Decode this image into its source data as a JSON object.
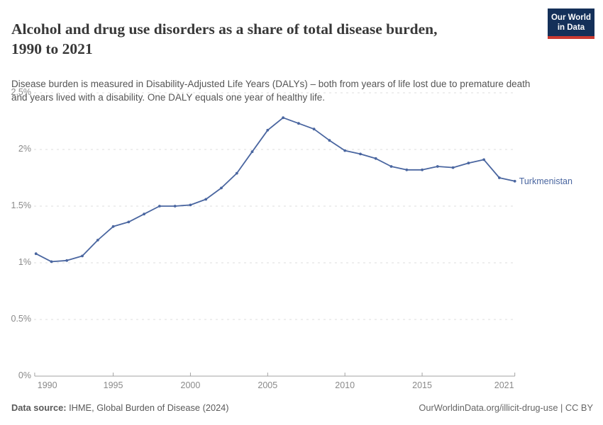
{
  "header": {
    "title_lines": [
      "Alcohol and drug use disorders as a share of total disease burden,",
      "1990 to 2021"
    ],
    "logo": {
      "line1": "Our World",
      "line2": "in Data",
      "bg_color": "#143059",
      "accent_color": "#cb3a31"
    }
  },
  "subtitle_lines": [
    "Disease burden is measured in Disability-Adjusted Life Years (DALYs) – both from years of life lost due to premature death",
    "and years lived with a disability. One DALY equals one year of healthy life."
  ],
  "chart_data": {
    "type": "line",
    "title": "Alcohol and drug use disorders as a share of total disease burden, 1990 to 2021",
    "unit": "%",
    "xlabel": "",
    "ylabel": "",
    "xlim": [
      1990,
      2021
    ],
    "ylim": [
      0,
      2.5
    ],
    "grid": "horizontal-dashed",
    "legend_position": "end-of-line-label",
    "x": [
      1990,
      1991,
      1992,
      1993,
      1994,
      1995,
      1996,
      1997,
      1998,
      1999,
      2000,
      2001,
      2002,
      2003,
      2004,
      2005,
      2006,
      2007,
      2008,
      2009,
      2010,
      2011,
      2012,
      2013,
      2014,
      2015,
      2016,
      2017,
      2018,
      2019,
      2020,
      2021
    ],
    "series": [
      {
        "name": "Turkmenistan",
        "color": "#4a66a0",
        "values": [
          1.08,
          1.01,
          1.02,
          1.06,
          1.2,
          1.32,
          1.36,
          1.43,
          1.5,
          1.5,
          1.51,
          1.56,
          1.66,
          1.79,
          1.98,
          2.17,
          2.28,
          2.23,
          2.18,
          2.08,
          1.99,
          1.96,
          1.92,
          1.85,
          1.82,
          1.82,
          1.85,
          1.84,
          1.88,
          1.91,
          1.75,
          1.72
        ]
      }
    ],
    "yticks": [
      {
        "value": 2.5,
        "label": "2.5%"
      },
      {
        "value": 2.0,
        "label": "2%"
      },
      {
        "value": 1.5,
        "label": "1.5%"
      },
      {
        "value": 1.0,
        "label": "1%"
      },
      {
        "value": 0.5,
        "label": "0.5%"
      },
      {
        "value": 0.0,
        "label": "0%"
      }
    ],
    "xticks": [
      {
        "value": 1990,
        "label": "1990"
      },
      {
        "value": 1995,
        "label": "1995"
      },
      {
        "value": 2000,
        "label": "2000"
      },
      {
        "value": 2005,
        "label": "2005"
      },
      {
        "value": 2010,
        "label": "2010"
      },
      {
        "value": 2015,
        "label": "2015"
      },
      {
        "value": 2021,
        "label": "2021"
      }
    ],
    "gridline_color": "#dddddd",
    "axis_color": "#a3a3a3",
    "tick_label_color": "#8a8a8a"
  },
  "footer": {
    "source_label": "Data source:",
    "source_text": " IHME, Global Burden of Disease (2024)",
    "right_text": "OurWorldinData.org/illicit-drug-use | CC BY"
  }
}
